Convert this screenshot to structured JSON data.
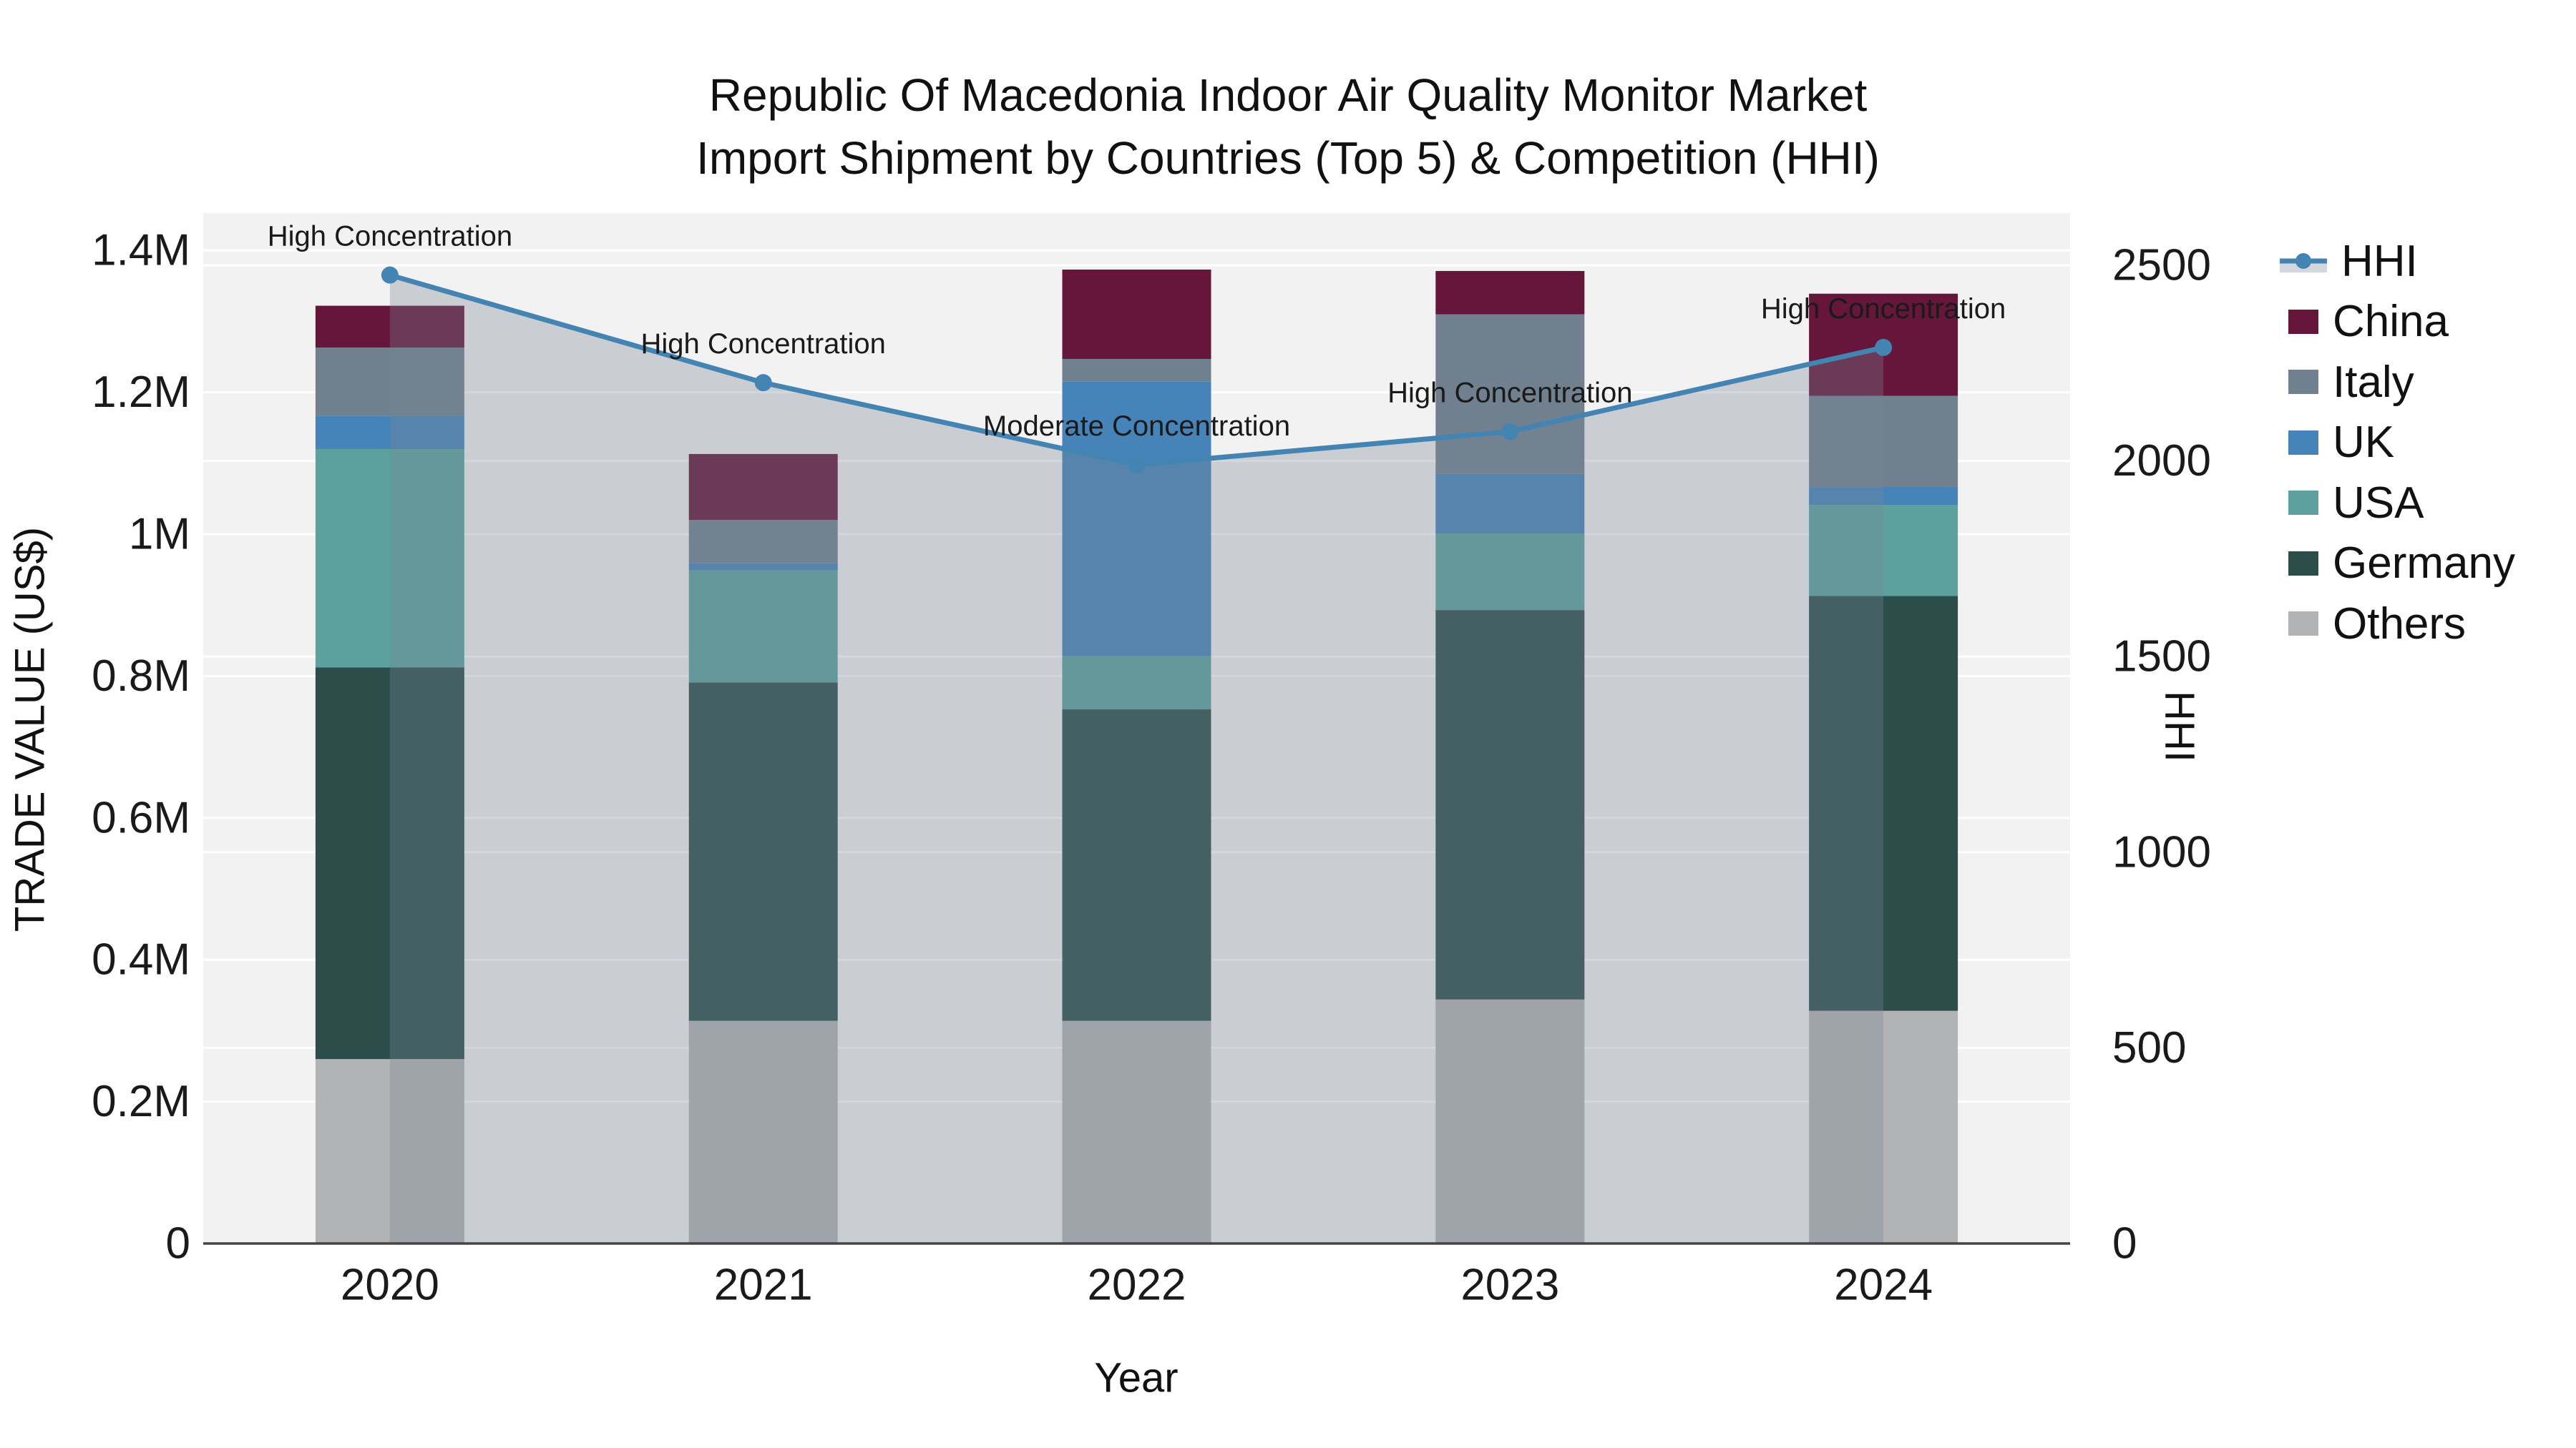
{
  "title": {
    "line1": "Republic Of Macedonia Indoor Air Quality Monitor Market",
    "line2": "Import Shipment by Countries (Top 5) & Competition (HHI)"
  },
  "axes": {
    "x_title": "Year",
    "y_left_title": "TRADE VALUE (US$)",
    "y_right_title": "HHI"
  },
  "colors": {
    "plot_background": "#f2f2f2",
    "gridline": "#ffffff",
    "axis_line": "#444444",
    "text": "#1a1a1a",
    "hhi_line": "#4484B2",
    "hhi_fill": "rgba(120,135,150,0.33)",
    "legend_fill_sample": "#d3d8de"
  },
  "chart_data": {
    "type": "combo-stacked-bar-line",
    "categories": [
      "2020",
      "2021",
      "2022",
      "2023",
      "2024"
    ],
    "bar_value_unit": "US$",
    "stack_order_bottom_to_top": [
      "Others",
      "Germany",
      "USA",
      "UK",
      "Italy",
      "China"
    ],
    "series": [
      {
        "name": "Others",
        "color": "#B1B3B4",
        "values": [
          260000,
          314000,
          314000,
          344000,
          328000
        ]
      },
      {
        "name": "Germany",
        "color": "#2C4E4B",
        "values": [
          552000,
          477000,
          439000,
          549000,
          585000
        ]
      },
      {
        "name": "USA",
        "color": "#5CA19E",
        "values": [
          308000,
          158000,
          75000,
          108000,
          128000
        ]
      },
      {
        "name": "UK",
        "color": "#4583B8",
        "values": [
          47000,
          10000,
          387000,
          84000,
          26000
        ]
      },
      {
        "name": "Italy",
        "color": "#70808F",
        "values": [
          96000,
          61000,
          32000,
          225000,
          128000
        ]
      },
      {
        "name": "China",
        "color": "#65163A",
        "values": [
          59000,
          93000,
          126000,
          61000,
          144000
        ]
      }
    ],
    "line": {
      "name": "HHI",
      "color": "#4484B2",
      "fill_color": "rgba(120,135,150,0.33)",
      "values": [
        2475,
        2200,
        1990,
        2075,
        2290
      ]
    },
    "annotations": [
      {
        "x": "2020",
        "text": "High Concentration"
      },
      {
        "x": "2021",
        "text": "High Concentration"
      },
      {
        "x": "2022",
        "text": "Moderate Concentration"
      },
      {
        "x": "2023",
        "text": "High Concentration"
      },
      {
        "x": "2024",
        "text": "High Concentration"
      }
    ],
    "y_left": {
      "tick_values": [
        0,
        200000,
        400000,
        600000,
        800000,
        1000000,
        1200000,
        1400000
      ],
      "tick_labels": [
        "0",
        "0.2M",
        "0.4M",
        "0.6M",
        "0.8M",
        "1M",
        "1.2M",
        "1.4M"
      ],
      "range": [
        0,
        1452000
      ]
    },
    "y_right": {
      "tick_values": [
        0,
        500,
        1000,
        1500,
        2000,
        2500
      ],
      "tick_labels": [
        "0",
        "500",
        "1000",
        "1500",
        "2000",
        "2500"
      ],
      "range": [
        0,
        2633
      ]
    },
    "legend_position": "right",
    "grid": true
  },
  "legend": {
    "items": [
      {
        "label": "HHI",
        "type": "line",
        "color": "#4484B2"
      },
      {
        "label": "China",
        "type": "swatch",
        "color": "#65163A"
      },
      {
        "label": "Italy",
        "type": "swatch",
        "color": "#70808F"
      },
      {
        "label": "UK",
        "type": "swatch",
        "color": "#4583B8"
      },
      {
        "label": "USA",
        "type": "swatch",
        "color": "#5CA19E"
      },
      {
        "label": "Germany",
        "type": "swatch",
        "color": "#2C4E4B"
      },
      {
        "label": "Others",
        "type": "swatch",
        "color": "#B1B3B4"
      }
    ]
  }
}
